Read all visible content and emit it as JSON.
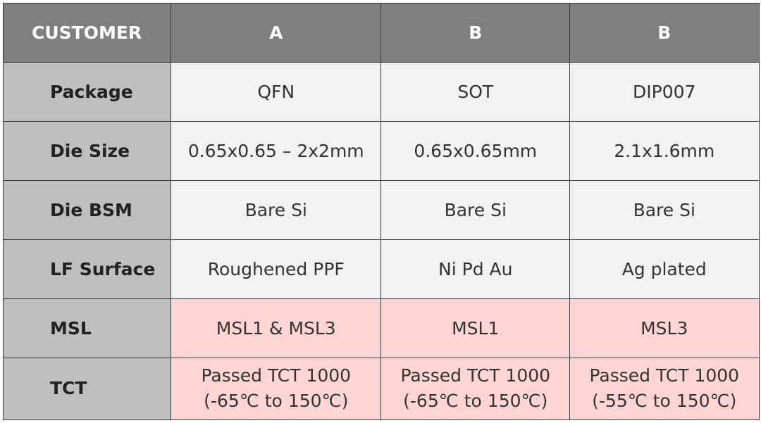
{
  "table": {
    "header": [
      "CUSTOMER",
      "A",
      "B",
      "B"
    ],
    "rows": [
      {
        "label": "Package",
        "cells": [
          [
            "QFN"
          ],
          [
            "SOT"
          ],
          [
            "DIP007"
          ]
        ]
      },
      {
        "label": "Die Size",
        "cells": [
          [
            "0.65x0.65 – 2x2mm"
          ],
          [
            "0.65x0.65mm"
          ],
          [
            "2.1x1.6mm"
          ]
        ]
      },
      {
        "label": "Die BSM",
        "cells": [
          [
            "Bare Si"
          ],
          [
            "Bare Si"
          ],
          [
            "Bare Si"
          ]
        ]
      },
      {
        "label": "LF Surface",
        "cells": [
          [
            "Roughened PPF"
          ],
          [
            "Ni Pd Au"
          ],
          [
            "Ag plated"
          ]
        ]
      },
      {
        "label": "MSL",
        "cells": [
          [
            "MSL1 & MSL3"
          ],
          [
            "MSL1"
          ],
          [
            "MSL3"
          ]
        ]
      },
      {
        "label": "TCT",
        "cells": [
          [
            "Passed TCT 1000",
            "(-65℃ to 150℃)"
          ],
          [
            "Passed TCT 1000",
            "(-65℃ to 150℃)"
          ],
          [
            "Passed TCT 1000",
            "(-55℃ to 150℃)"
          ]
        ]
      }
    ]
  }
}
